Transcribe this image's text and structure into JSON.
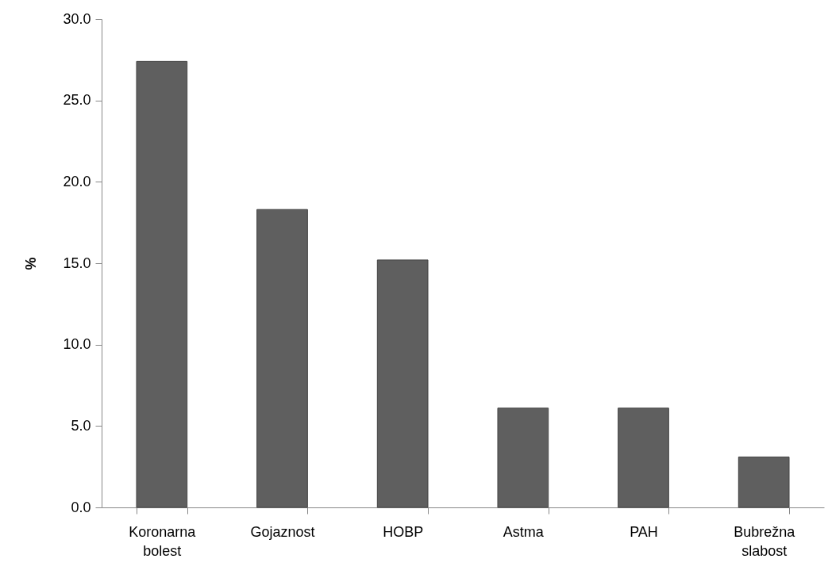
{
  "chart_data": {
    "type": "bar",
    "ylabel": "%",
    "categories": [
      "Koronarna bolest",
      "Gojaznost",
      "HOBP",
      "Astma",
      "PAH",
      "Bubrežna slabost"
    ],
    "values": [
      27.4,
      18.3,
      15.2,
      6.1,
      6.1,
      3.1
    ],
    "color": "#5f5f5f",
    "ylim": [
      0,
      30
    ],
    "yticks": [
      {
        "value": 0,
        "label": "0.0"
      },
      {
        "value": 5,
        "label": "5.0"
      },
      {
        "value": 10,
        "label": "10.0"
      },
      {
        "value": 15,
        "label": "15.0"
      },
      {
        "value": 20,
        "label": "20.0"
      },
      {
        "value": 25,
        "label": "25.0"
      },
      {
        "value": 30,
        "label": "30.0"
      }
    ],
    "grid": false
  }
}
